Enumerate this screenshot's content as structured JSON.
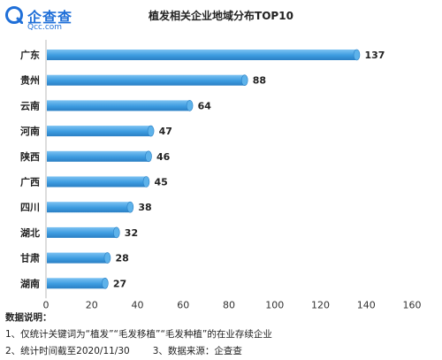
{
  "logo": {
    "name": "企查查",
    "site": "Qcc.com",
    "color": "#1f6fd8"
  },
  "chart_data": {
    "type": "bar",
    "orientation": "horizontal",
    "title": "植发相关企业地域分布TOP10",
    "categories": [
      "广东",
      "贵州",
      "云南",
      "河南",
      "陕西",
      "广西",
      "四川",
      "湖北",
      "甘肃",
      "湖南"
    ],
    "values": [
      137,
      88,
      64,
      47,
      46,
      45,
      38,
      32,
      28,
      27
    ],
    "xlim": [
      0,
      160
    ],
    "xticks": [
      0,
      20,
      40,
      60,
      80,
      100,
      120,
      140,
      160
    ],
    "grid": false,
    "bar_color": "#3d9ce0",
    "data_labels": true
  },
  "notes": {
    "heading": "数据说明：",
    "items": [
      "1、仅统计关键词为“植发”“毛发移植”“毛发种植”的在业存续企业",
      "2、统计时间截至2020/11/30",
      "3、数据来源：企查查"
    ]
  }
}
